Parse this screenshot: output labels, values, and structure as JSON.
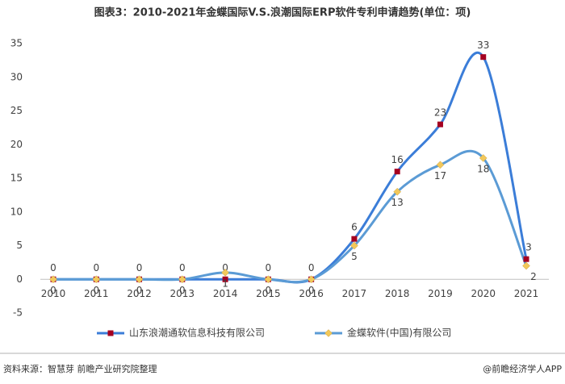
{
  "chart_data": {
    "type": "line",
    "title": "图表3：2010-2021年金蝶国际V.S.浪潮国际ERP软件专利申请趋势(单位：项)",
    "categories": [
      "2010",
      "2011",
      "2012",
      "2013",
      "2014",
      "2015",
      "2016",
      "2017",
      "2018",
      "2019",
      "2020",
      "2021"
    ],
    "series": [
      {
        "name": "山东浪潮通软信息科技有限公司",
        "color": "#3b7dd8",
        "marker_color": "#a50021",
        "marker": "square",
        "label_position": "above",
        "values": [
          0,
          0,
          0,
          0,
          0,
          0,
          0,
          6,
          16,
          23,
          33,
          3
        ]
      },
      {
        "name": "金蝶软件(中国)有限公司",
        "color": "#5b9bd5",
        "marker_color": "#f2c85b",
        "marker": "diamond",
        "label_position": "below",
        "values": [
          0,
          0,
          0,
          0,
          1,
          0,
          0,
          5,
          13,
          17,
          18,
          2
        ]
      }
    ],
    "ylim": [
      -5,
      35
    ],
    "yticks": [
      -5,
      0,
      5,
      10,
      15,
      20,
      25,
      30,
      35
    ],
    "smooth": true,
    "source": "资料来源：智慧芽 前瞻产业研究院整理",
    "credit": "@前瞻经济学人APP"
  }
}
